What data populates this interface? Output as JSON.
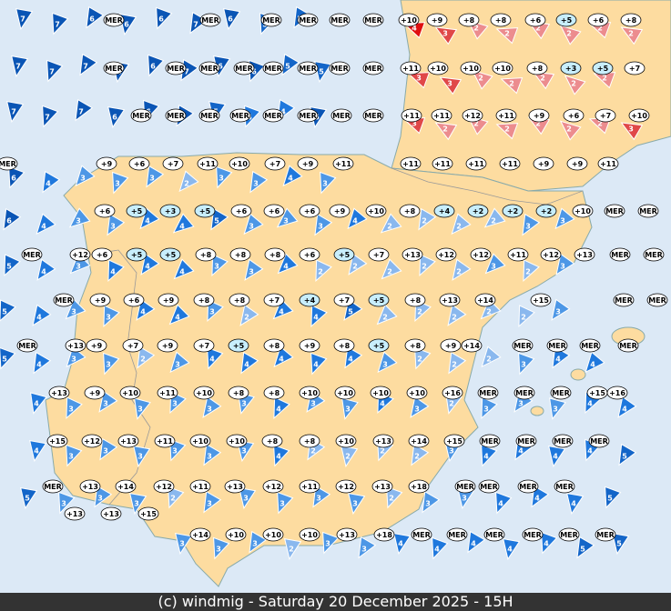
{
  "footer": "(c) windmig - Saturday 20 December 2025 - 15H",
  "stations": [
    [
      "MER",
      "MER",
      "MER",
      "MER",
      "MER",
      "MER",
      "+10",
      "+9",
      "+8",
      "+8",
      "+6",
      "+5",
      "+6",
      "+8"
    ],
    [
      "MER",
      "MER",
      "MER",
      "MER",
      "MER",
      "MER",
      "MER",
      "MER",
      "+11",
      "+10",
      "+10",
      "+10",
      "+8",
      "+3",
      "+5",
      "+7"
    ],
    [
      "MER",
      "MER",
      "MER",
      "MER",
      "MER",
      "MER",
      "MER",
      "MER",
      "+11",
      "+11",
      "+12",
      "+11",
      "+9",
      "+6",
      "+7",
      "+10"
    ],
    [
      "MER",
      "+9",
      "+6",
      "+7",
      "+11",
      "+10",
      "+7",
      "+9",
      "+11",
      "+11",
      "+11",
      "+11",
      "+11",
      "+9",
      "+9",
      "+11"
    ],
    [
      "+6",
      "+5",
      "+3",
      "+5",
      "+6",
      "+6",
      "+6",
      "+9",
      "+10",
      "+8",
      "+4",
      "+2",
      "+2",
      "+2",
      "+10",
      "MER",
      "MER"
    ],
    [
      "MER",
      "+12",
      "+6",
      "+5",
      "+5",
      "+8",
      "+8",
      "+8",
      "+6",
      "+5",
      "+7",
      "+13",
      "+12",
      "+12",
      "+11",
      "+12",
      "+13",
      "MER",
      "MER"
    ],
    [
      "MER",
      "+9",
      "+6",
      "+9",
      "+8",
      "+8",
      "+7",
      "+4",
      "+7",
      "+5",
      "+8",
      "+13",
      "+14",
      "+15",
      "MER",
      "MER"
    ],
    [
      "MER",
      "+13",
      "+9",
      "+7",
      "+9",
      "+7",
      "+5",
      "+8",
      "+9",
      "+8",
      "+5",
      "+8",
      "+9",
      "+14",
      "MER",
      "MER",
      "MER",
      "MER"
    ],
    [
      "+13",
      "+9",
      "+10",
      "+11",
      "+10",
      "+8",
      "+8",
      "+10",
      "+10",
      "+10",
      "+10",
      "+16",
      "MER",
      "MER",
      "MER",
      "+15",
      "+16"
    ],
    [
      "+15",
      "+12",
      "+13",
      "+11",
      "+10",
      "+10",
      "+8",
      "+8",
      "+10",
      "+13",
      "+14",
      "+15",
      "MER",
      "MER",
      "MER",
      "MER"
    ],
    [
      "MER",
      "+13",
      "+14",
      "+12",
      "+11",
      "+13",
      "+12",
      "+11",
      "+12",
      "+13",
      "+18",
      "MER",
      "MER",
      "MER",
      "MER"
    ],
    [
      "+13",
      "+13",
      "+15"
    ],
    [
      "+14",
      "+10",
      "+10",
      "+10",
      "+13",
      "+18",
      "MER",
      "MER",
      "MER",
      "MER",
      "MER",
      "MER"
    ]
  ],
  "winds": [
    [
      7,
      7,
      6,
      6,
      6,
      7,
      6,
      5,
      5
    ],
    [
      4,
      3,
      2,
      2,
      2,
      2,
      2,
      2
    ],
    [
      7,
      7,
      7,
      6,
      6,
      7,
      6,
      6,
      5,
      5
    ],
    [
      3,
      3,
      2,
      2,
      2,
      2,
      2
    ],
    [
      7,
      7,
      7,
      6,
      6,
      7,
      5,
      4,
      4,
      6
    ],
    [
      3,
      2,
      2,
      2,
      2,
      2,
      2,
      3
    ],
    [
      6,
      4,
      3,
      3,
      3,
      2,
      3,
      3,
      4,
      3
    ],
    [
      6,
      4,
      3,
      3,
      4,
      4,
      5,
      3,
      3,
      3,
      4,
      2,
      2,
      2,
      2,
      3,
      3
    ],
    [
      5,
      4,
      3,
      4,
      4,
      4,
      3,
      3,
      4,
      2,
      2,
      2,
      2,
      2,
      3,
      2,
      3
    ],
    [
      5,
      4,
      3,
      3,
      4,
      4,
      3,
      2,
      4,
      4,
      5,
      2,
      2,
      2,
      2,
      2,
      3
    ],
    [
      5,
      4,
      3,
      3,
      2,
      3,
      4,
      4,
      4,
      4,
      4,
      3,
      2,
      2,
      2,
      3,
      4,
      4
    ],
    [
      4,
      3,
      3,
      3,
      3,
      3,
      3,
      4,
      3,
      3,
      4,
      3,
      2,
      3,
      3,
      3,
      4,
      4
    ],
    [
      4,
      3,
      3,
      3,
      3,
      3,
      3,
      4,
      2,
      2,
      2,
      2,
      3,
      4,
      4,
      4,
      4,
      5
    ],
    [
      5,
      3,
      3,
      3,
      2,
      3,
      3,
      3,
      3,
      3,
      2,
      3,
      3,
      4,
      4,
      4,
      5
    ],
    [
      3,
      3,
      3,
      2,
      3,
      3,
      4,
      4,
      4,
      4,
      4,
      5,
      5
    ]
  ]
}
